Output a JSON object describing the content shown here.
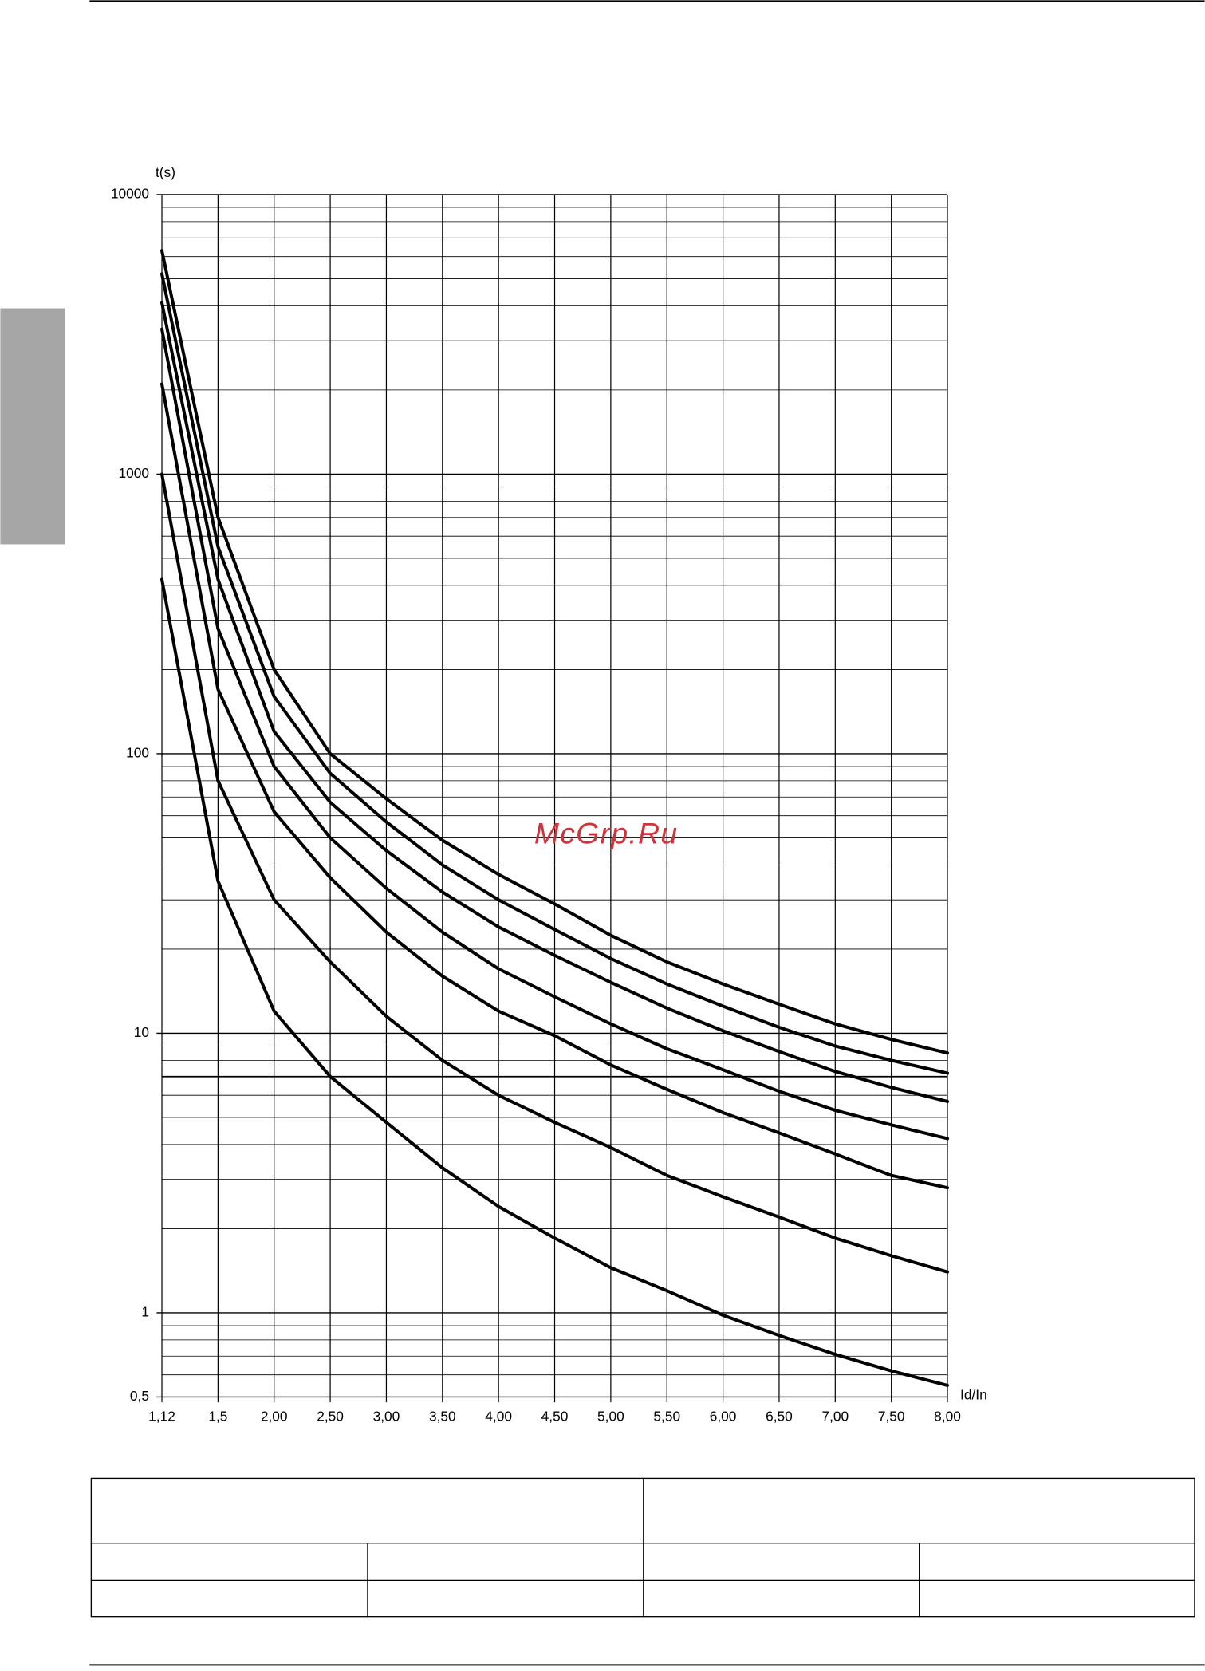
{
  "chart_data": {
    "type": "line",
    "ylabel": "t(s)",
    "xlabel": "Id/In",
    "watermark": "McGrp.Ru",
    "log_y": true,
    "grid": true,
    "color": "#000000",
    "x": [
      1.12,
      1.5,
      2.0,
      2.5,
      3.0,
      3.5,
      4.0,
      4.5,
      5.0,
      5.5,
      6.0,
      6.5,
      7.0,
      7.5,
      8.0
    ],
    "xlim": [
      1.12,
      8.0
    ],
    "xticks": [
      {
        "value": 1.12,
        "label": "1,12"
      },
      {
        "value": 1.5,
        "label": "1,5"
      },
      {
        "value": 2.0,
        "label": "2,00"
      },
      {
        "value": 2.5,
        "label": "2,50"
      },
      {
        "value": 3.0,
        "label": "3,00"
      },
      {
        "value": 3.5,
        "label": "3,50"
      },
      {
        "value": 4.0,
        "label": "4,00"
      },
      {
        "value": 4.5,
        "label": "4,50"
      },
      {
        "value": 5.0,
        "label": "5,00"
      },
      {
        "value": 5.5,
        "label": "5,50"
      },
      {
        "value": 6.0,
        "label": "6,00"
      },
      {
        "value": 6.5,
        "label": "6,50"
      },
      {
        "value": 7.0,
        "label": "7,00"
      },
      {
        "value": 7.5,
        "label": "7,50"
      },
      {
        "value": 8.0,
        "label": "8,00"
      }
    ],
    "ylim": [
      0.5,
      10000
    ],
    "yticks": [
      {
        "value": 0.5,
        "label": "0,5"
      },
      1,
      10,
      100,
      1000,
      10000
    ],
    "reference_line_y": 7,
    "series": [
      {
        "color": "#000000",
        "values": [
          6300,
          700,
          200,
          100,
          69,
          49,
          37,
          29,
          22.4,
          18,
          15,
          12.7,
          10.8,
          9.5,
          8.5
        ]
      },
      {
        "color": "#000000",
        "values": [
          5200,
          550,
          160,
          85,
          57,
          40,
          30,
          23.5,
          18.5,
          15,
          12.5,
          10.5,
          9,
          8,
          7.2
        ]
      },
      {
        "color": "#000000",
        "values": [
          4100,
          420,
          120,
          67,
          45,
          32,
          24,
          19,
          15.2,
          12.3,
          10.2,
          8.6,
          7.3,
          6.4,
          5.7
        ]
      },
      {
        "color": "#000000",
        "values": [
          3300,
          280,
          90,
          50,
          33,
          23,
          17,
          13.5,
          10.8,
          8.8,
          7.4,
          6.2,
          5.3,
          4.7,
          4.2
        ]
      },
      {
        "color": "#000000",
        "values": [
          2100,
          170,
          62,
          36,
          23,
          16,
          12,
          9.8,
          7.7,
          6.3,
          5.2,
          4.4,
          3.7,
          3.1,
          2.8
        ]
      },
      {
        "color": "#000000",
        "values": [
          1000,
          80,
          30,
          18,
          11.5,
          8,
          6,
          4.8,
          3.9,
          3.1,
          2.6,
          2.2,
          1.85,
          1.6,
          1.4
        ]
      },
      {
        "color": "#000000",
        "values": [
          420,
          35,
          12,
          7,
          4.8,
          3.3,
          2.4,
          1.85,
          1.45,
          1.2,
          0.98,
          0.83,
          0.71,
          0.62,
          0.55
        ]
      }
    ]
  }
}
